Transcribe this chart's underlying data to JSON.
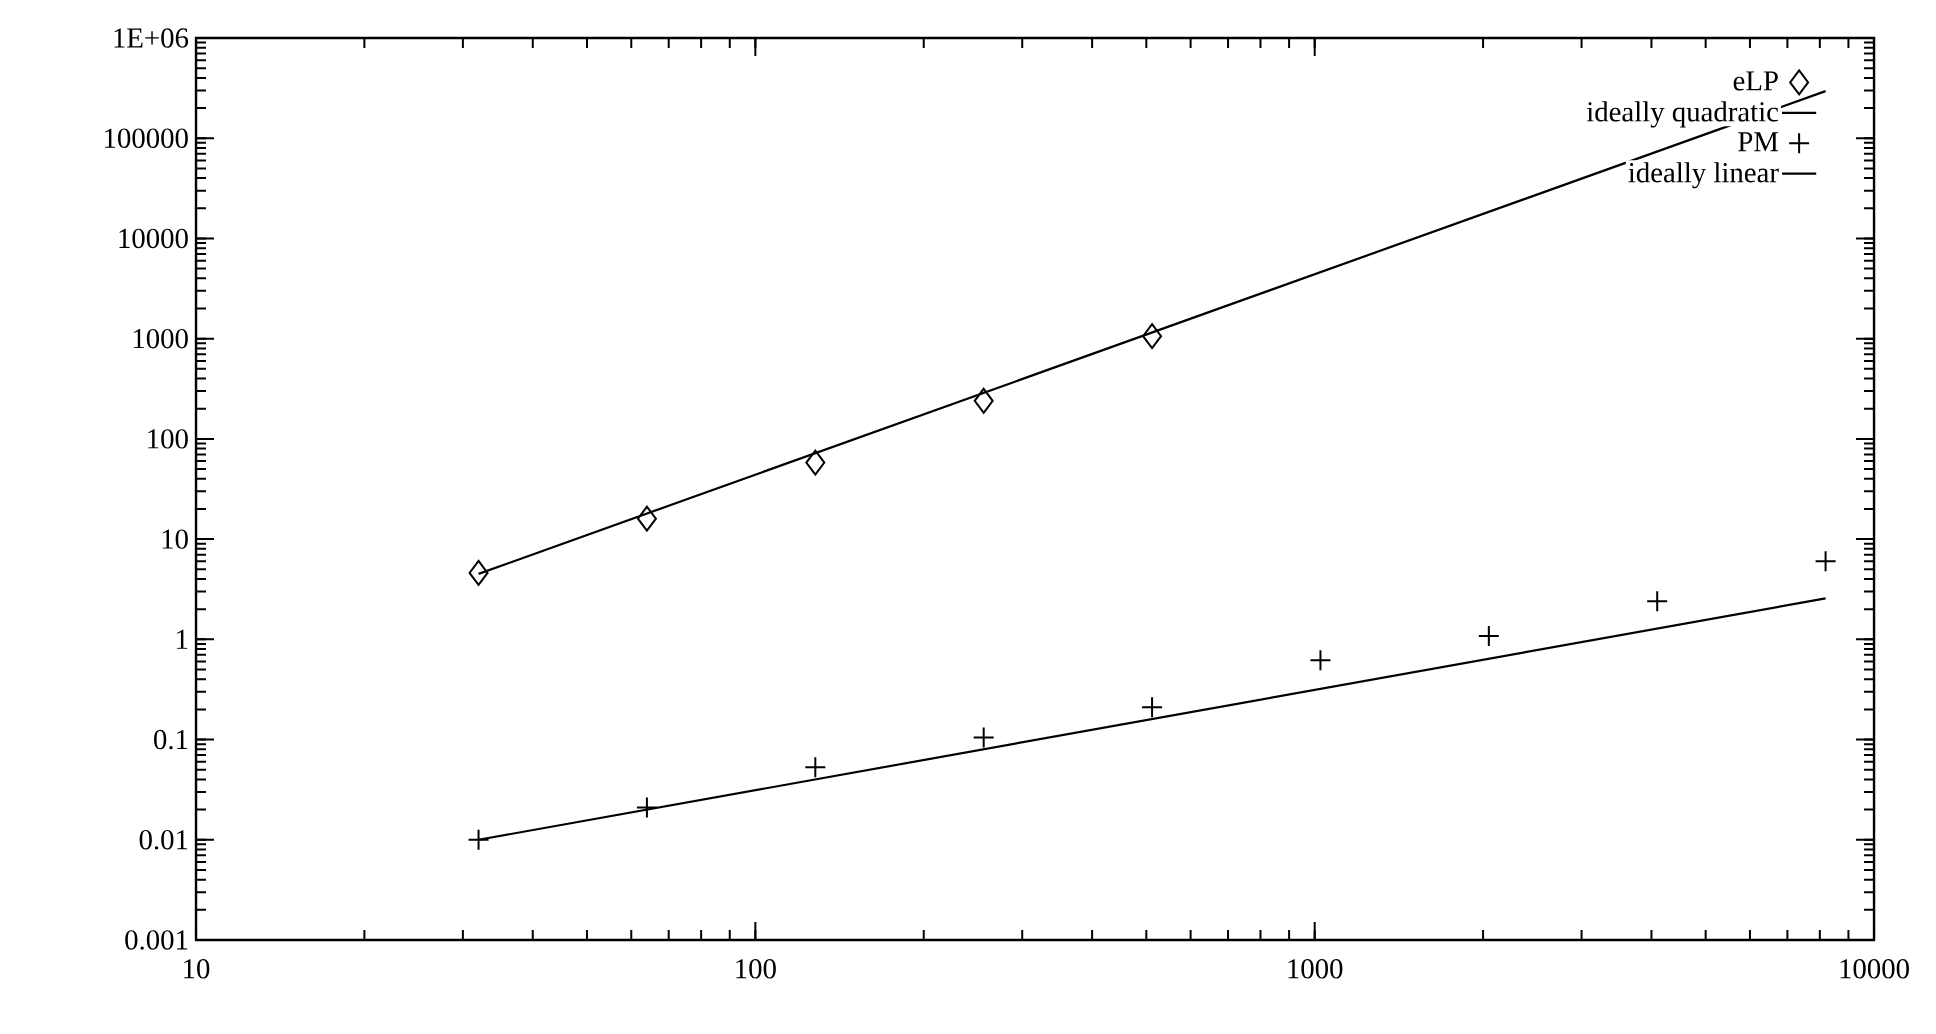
{
  "chart_data": {
    "type": "scatter",
    "log": "xy",
    "legend": "top right",
    "xlim": [
      10,
      10000
    ],
    "ylim": [
      0.001,
      1000000
    ],
    "xticks": [
      10,
      100,
      1000,
      10000
    ],
    "yticks": [
      0.001,
      0.01,
      0.1,
      1,
      10,
      100,
      1000,
      10000,
      100000,
      {
        "value": 1000000,
        "label": "1E+06"
      }
    ],
    "series": [
      {
        "name": "eLP",
        "marker": "diamond",
        "color": "#000000",
        "x": [
          32,
          64,
          128,
          256,
          512
        ],
        "values": [
          4.6,
          16,
          58,
          240,
          1060
        ]
      },
      {
        "name": "ideally quadratic",
        "type": "line",
        "marker": "none",
        "line_style": "solid",
        "color": "#000000",
        "x": [
          32,
          8192
        ],
        "values": [
          4.5,
          295000
        ]
      },
      {
        "name": "PM",
        "marker": "cross",
        "color": "#000000",
        "x": [
          32,
          64,
          128,
          256,
          512,
          1024,
          2048,
          4096,
          8192
        ],
        "values": [
          0.01,
          0.021,
          0.053,
          0.105,
          0.21,
          0.62,
          1.08,
          2.4,
          6
        ]
      },
      {
        "name": "ideally linear",
        "type": "line",
        "marker": "none",
        "line_style": "solid",
        "color": "#000000",
        "x": [
          32,
          8192
        ],
        "values": [
          0.01,
          2.56
        ]
      }
    ]
  }
}
